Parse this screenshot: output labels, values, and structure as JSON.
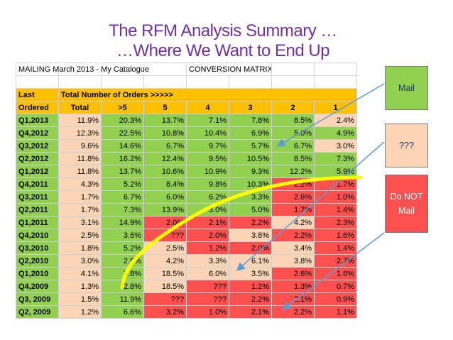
{
  "title_line1": "The RFM Analysis Summary …",
  "title_line2": "…Where We Want to End Up",
  "sheet": {
    "mailing_label": "MAILING March 2013 - My Catalogue",
    "matrix_label": "CONVERSION MATRIX",
    "last_label": "Last",
    "ordered_label": "Ordered",
    "total_orders_label": "Total Number of Orders >>>>>",
    "columns": [
      "Total",
      ">5",
      "5",
      "4",
      "3",
      "2",
      "1"
    ],
    "rows": [
      {
        "label": "Q1,2013",
        "values": [
          "11.9%",
          "20.3%",
          "13.7%",
          "7.1%",
          "7.8%",
          "8.5%",
          "2.4%"
        ]
      },
      {
        "label": "Q4,2012",
        "values": [
          "12.3%",
          "22.5%",
          "10.8%",
          "10.4%",
          "6.9%",
          "5.0%",
          "4.9%"
        ]
      },
      {
        "label": "Q3,2012",
        "values": [
          "9.6%",
          "14.6%",
          "6.7%",
          "9.7%",
          "5.7%",
          "6.7%",
          "3.0%"
        ]
      },
      {
        "label": "Q2,2012",
        "values": [
          "11.8%",
          "16.2%",
          "12.4%",
          "9.5%",
          "10.5%",
          "8.5%",
          "7.3%"
        ]
      },
      {
        "label": "Q1,2012",
        "values": [
          "11.8%",
          "13.7%",
          "10.6%",
          "10.9%",
          "9.3%",
          "12.2%",
          "5.9%"
        ]
      },
      {
        "label": "Q4,2011",
        "values": [
          "4.3%",
          "5.2%",
          "8.4%",
          "9.8%",
          "10.3%",
          "2.2%",
          "1.7%"
        ]
      },
      {
        "label": "Q3,2011",
        "values": [
          "1.7%",
          "6.7%",
          "6.0%",
          "6.2%",
          "3.3%",
          "2.6%",
          "1.0%"
        ]
      },
      {
        "label": "Q2,2011",
        "values": [
          "1.7%",
          "7.3%",
          "13.9%",
          "3.0%",
          "5.0%",
          "1.7%",
          "1.4%"
        ]
      },
      {
        "label": "Q1,2011",
        "values": [
          "3.1%",
          "14.9%",
          "2.0%",
          "2.1%",
          "2.2%",
          "4.2%",
          "2.3%"
        ]
      },
      {
        "label": "Q4,2010",
        "values": [
          "2.5%",
          "3.6%",
          "???",
          "2.0%",
          "3.8%",
          "2.2%",
          "1.6%"
        ]
      },
      {
        "label": "Q3,2010",
        "values": [
          "1.8%",
          "5.2%",
          "2.5%",
          "1.2%",
          "2.0%",
          "3.4%",
          "1.4%"
        ]
      },
      {
        "label": "Q2,2010",
        "values": [
          "3.0%",
          "2.9%",
          "4.2%",
          "3.3%",
          "6.1%",
          "3.8%",
          "2.7%"
        ]
      },
      {
        "label": "Q1,2010",
        "values": [
          "4.1%",
          "7.8%",
          "18.5%",
          "6.0%",
          "3.5%",
          "2.6%",
          "1.6%"
        ]
      },
      {
        "label": "Q4,2009",
        "values": [
          "1.3%",
          "2.8%",
          "18.5%",
          "???",
          "1.2%",
          "1.3%",
          "0.7%"
        ]
      },
      {
        "label": "Q3, 2009",
        "values": [
          "1.5%",
          "11.9%",
          "???",
          "???",
          "2.2%",
          "2.1%",
          "0.9%"
        ]
      },
      {
        "label": "Q2, 2009",
        "values": [
          "1.2%",
          "6.6%",
          "3.2%",
          "1.0%",
          "2.1%",
          "2.2%",
          "1.1%"
        ]
      }
    ],
    "row_colors": [
      [
        "p",
        "g",
        "g",
        "g",
        "g",
        "g",
        "p"
      ],
      [
        "p",
        "g",
        "g",
        "g",
        "g",
        "g",
        "g"
      ],
      [
        "p",
        "g",
        "g",
        "g",
        "g",
        "g",
        "p"
      ],
      [
        "p",
        "g",
        "g",
        "g",
        "g",
        "g",
        "g"
      ],
      [
        "p",
        "g",
        "g",
        "g",
        "g",
        "g",
        "g"
      ],
      [
        "p",
        "g",
        "g",
        "g",
        "g",
        "r",
        "r"
      ],
      [
        "p",
        "g",
        "g",
        "g",
        "g",
        "r",
        "r"
      ],
      [
        "p",
        "g",
        "g",
        "g",
        "g",
        "r",
        "r"
      ],
      [
        "p",
        "g",
        "r",
        "r",
        "r",
        "p",
        "r"
      ],
      [
        "p",
        "g",
        "r",
        "r",
        "p",
        "r",
        "r"
      ],
      [
        "p",
        "g",
        "p",
        "r",
        "r",
        "p",
        "r"
      ],
      [
        "p",
        "g",
        "p",
        "p",
        "p",
        "p",
        "r"
      ],
      [
        "p",
        "g",
        "p",
        "p",
        "p",
        "r",
        "r"
      ],
      [
        "p",
        "g",
        "p",
        "r",
        "r",
        "r",
        "r"
      ],
      [
        "p",
        "g",
        "r",
        "r",
        "r",
        "r",
        "r"
      ],
      [
        "p",
        "g",
        "r",
        "r",
        "r",
        "r",
        "r"
      ]
    ]
  },
  "boxes": {
    "mail": "Mail",
    "unknown": "???",
    "do_not_mail": "Do NOT Mail"
  },
  "colors": {
    "green": "#92d050",
    "peach": "#fbd5b5",
    "red": "#ff5050",
    "orange": "#ffc000",
    "title": "#7030a0",
    "arrow": "#5b9bd5",
    "curve": "#ffff00"
  }
}
